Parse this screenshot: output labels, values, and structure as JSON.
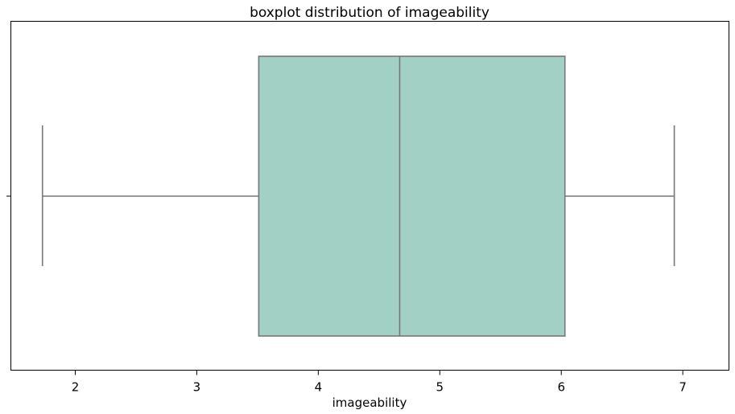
{
  "chart_data": {
    "type": "boxplot",
    "title": "boxplot distribution of imageability",
    "xlabel": "imageability",
    "ylabel": "",
    "xlim": [
      1.47,
      7.38
    ],
    "xticks": [
      2,
      3,
      4,
      5,
      6,
      7
    ],
    "xtick_labels": [
      "2",
      "3",
      "4",
      "5",
      "6",
      "7"
    ],
    "orientation": "horizontal",
    "grid": false,
    "box": {
      "whisker_low": 1.73,
      "q1": 3.51,
      "median": 4.67,
      "q3": 6.03,
      "whisker_high": 6.93
    },
    "colors": {
      "box_fill": "#a3d0c5",
      "box_edge": "#777777",
      "axes": "#000000"
    }
  }
}
